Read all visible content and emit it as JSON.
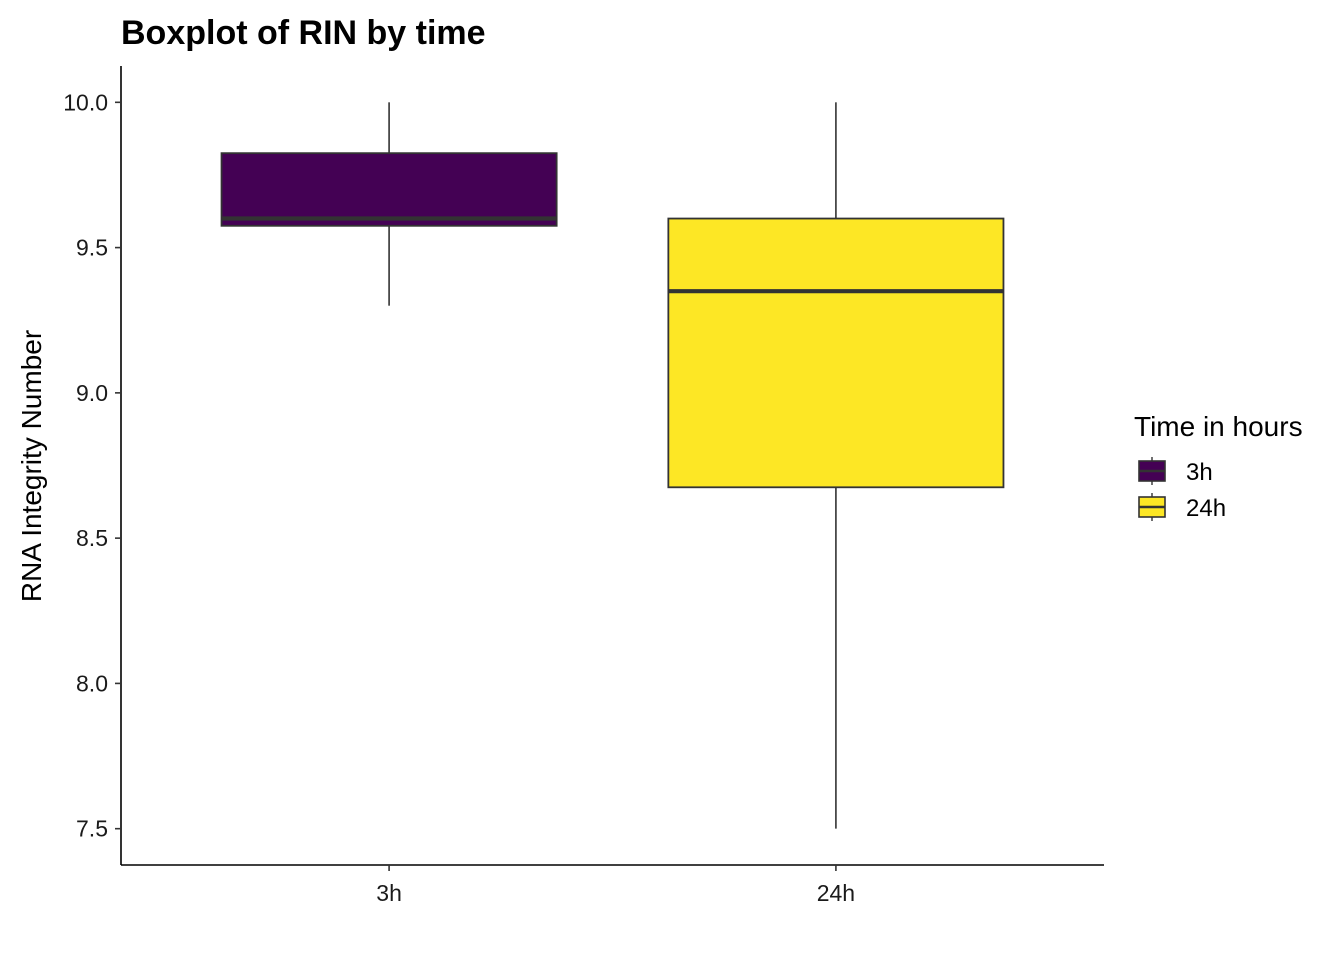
{
  "chart_data": {
    "type": "boxplot",
    "title": "Boxplot of RIN by time",
    "xlabel": "",
    "ylabel": "RNA Integrity Number",
    "ylim": [
      7.375,
      10.125
    ],
    "y_ticks": [
      7.5,
      8.0,
      8.5,
      9.0,
      9.5,
      10.0
    ],
    "y_tick_labels": [
      "7.5",
      "8.0",
      "8.5",
      "9.0",
      "9.5",
      "10.0"
    ],
    "categories": [
      "3h",
      "24h"
    ],
    "boxes": [
      {
        "category": "3h",
        "min": 9.3,
        "q1": 9.575,
        "median": 9.6,
        "q3": 9.825,
        "max": 10.0,
        "fill": "#440154"
      },
      {
        "category": "24h",
        "min": 7.5,
        "q1": 8.675,
        "median": 9.35,
        "q3": 9.6,
        "max": 10.0,
        "fill": "#FDE725"
      }
    ],
    "legend": {
      "title": "Time in hours",
      "position": "right",
      "entries": [
        {
          "label": "3h",
          "fill": "#440154"
        },
        {
          "label": "24h",
          "fill": "#FDE725"
        }
      ]
    },
    "grid": false
  }
}
